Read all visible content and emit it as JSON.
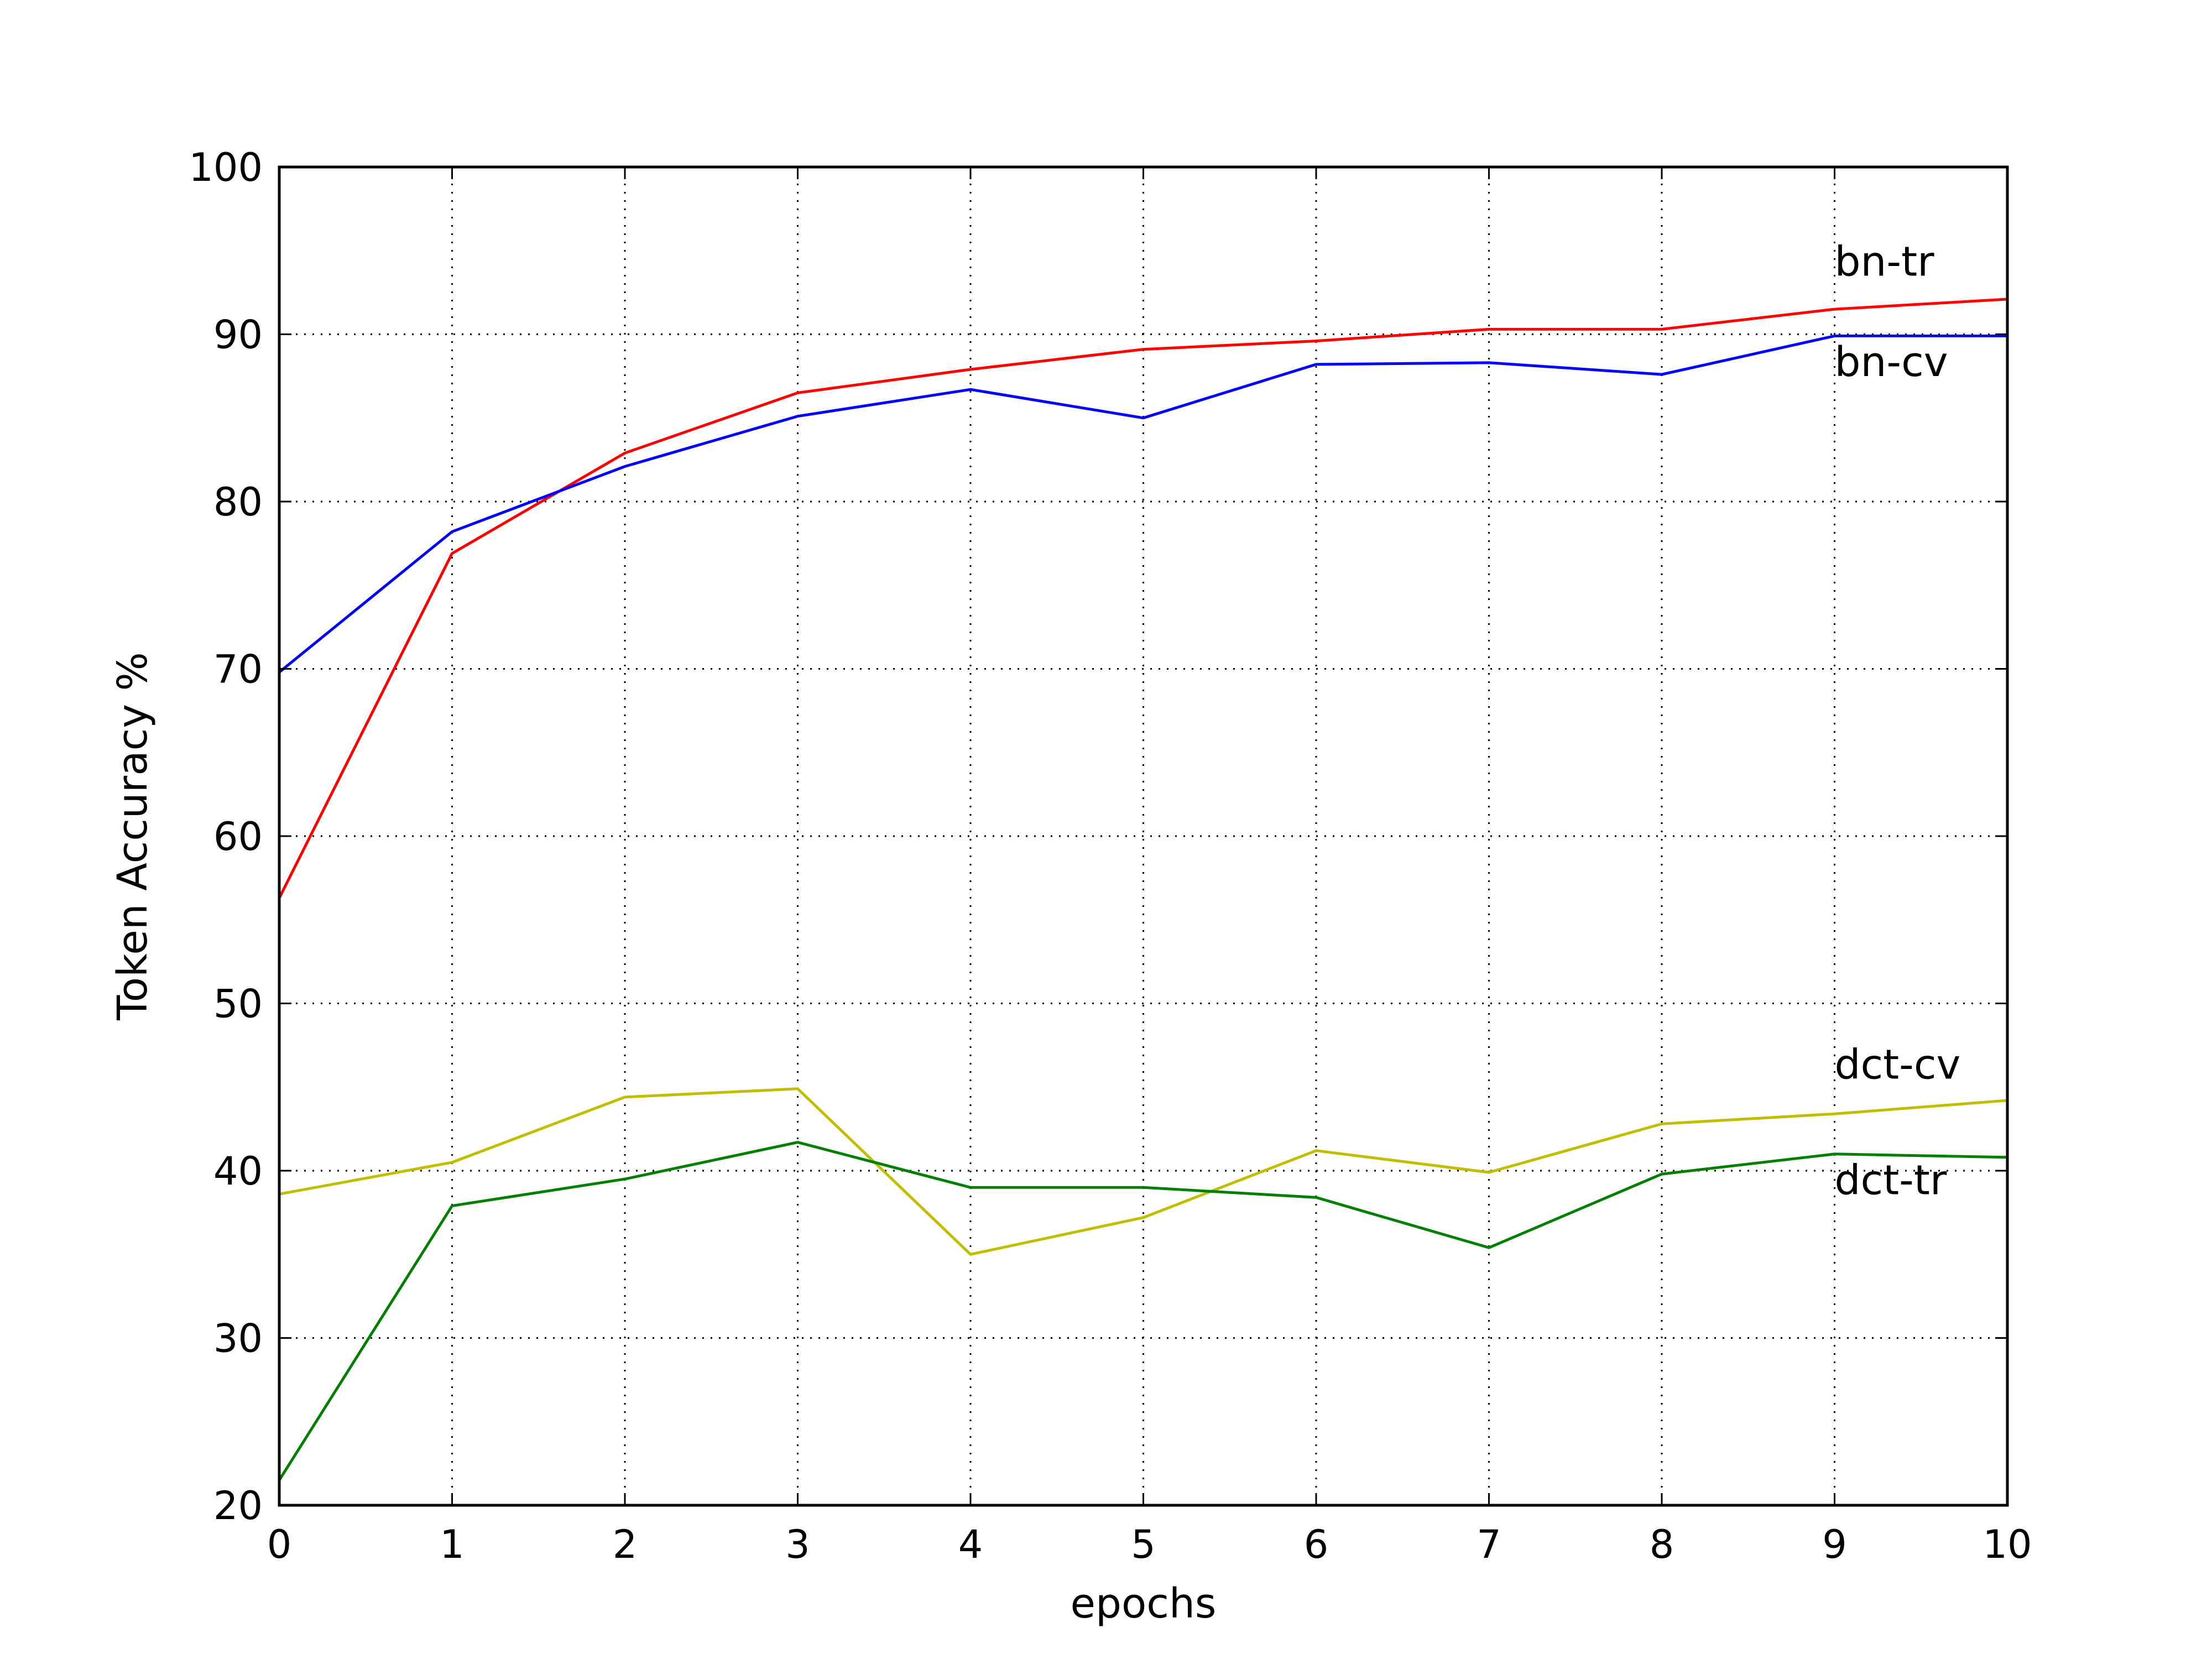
{
  "chart_data": {
    "type": "line",
    "title": "",
    "xlabel": "epochs",
    "ylabel": "Token Accuracy %",
    "xlim": [
      0,
      10
    ],
    "ylim": [
      20,
      100
    ],
    "x_ticks": [
      0,
      1,
      2,
      3,
      4,
      5,
      6,
      7,
      8,
      9,
      10
    ],
    "y_ticks": [
      20,
      30,
      40,
      50,
      60,
      70,
      80,
      90,
      100
    ],
    "x_tick_labels": [
      "0",
      "1",
      "2",
      "3",
      "4",
      "5",
      "6",
      "7",
      "8",
      "9",
      "10"
    ],
    "y_tick_labels": [
      "20",
      "30",
      "40",
      "50",
      "60",
      "70",
      "80",
      "90",
      "100"
    ],
    "grid": true,
    "legend": "none",
    "x": [
      0,
      1,
      2,
      3,
      4,
      5,
      6,
      7,
      8,
      9,
      10
    ],
    "series": [
      {
        "name": "bn-tr",
        "color": "#ff0000",
        "values": [
          56.3,
          76.9,
          82.9,
          86.5,
          87.9,
          89.1,
          89.6,
          90.3,
          90.3,
          91.5,
          92.1
        ],
        "label_x": 9.0,
        "label_y": 93.5
      },
      {
        "name": "bn-cv",
        "color": "#0000ff",
        "values": [
          69.8,
          78.2,
          82.1,
          85.1,
          86.7,
          85.0,
          88.2,
          88.3,
          87.6,
          89.9,
          89.9
        ],
        "label_x": 9.0,
        "label_y": 87.5
      },
      {
        "name": "dct-cv",
        "color": "#bfbf00",
        "values": [
          38.6,
          40.5,
          44.4,
          44.9,
          35.0,
          37.2,
          41.2,
          39.9,
          42.8,
          43.4,
          44.2
        ],
        "label_x": 9.0,
        "label_y": 45.5
      },
      {
        "name": "dct-tr",
        "color": "#007f00",
        "values": [
          21.5,
          37.9,
          39.5,
          41.7,
          39.0,
          39.0,
          38.4,
          35.4,
          39.8,
          41.0,
          40.8
        ],
        "label_x": 9.0,
        "label_y": 38.6
      }
    ]
  }
}
